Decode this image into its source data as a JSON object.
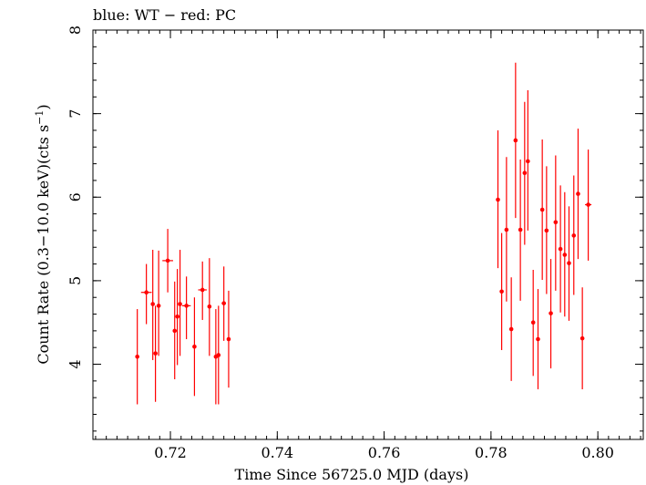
{
  "chart_data": {
    "type": "scatter",
    "title": "blue: WT − red: PC",
    "xlabel": "Time Since 56725.0 MJD (days)",
    "ylabel_main": "Count Rate (0.3−10.0 keV)(cts s",
    "ylabel_sup": "−1",
    "ylabel_close": ")",
    "xlim": [
      0.7055,
      0.8085
    ],
    "ylim": [
      3.1,
      8.0
    ],
    "xticks": [
      {
        "value": 0.72,
        "label": "0.72"
      },
      {
        "value": 0.74,
        "label": "0.74"
      },
      {
        "value": 0.76,
        "label": "0.76"
      },
      {
        "value": 0.78,
        "label": "0.78"
      },
      {
        "value": 0.8,
        "label": "0.80"
      }
    ],
    "yticks": [
      {
        "value": 4,
        "label": "4"
      },
      {
        "value": 5,
        "label": "5"
      },
      {
        "value": 6,
        "label": "6"
      },
      {
        "value": 7,
        "label": "7"
      },
      {
        "value": 8,
        "label": "8"
      }
    ],
    "xminor_step": 0.002,
    "yminor_step": 0.2,
    "grid": false,
    "series": [
      {
        "color": "#ff0000",
        "points": [
          {
            "x": 0.7138,
            "xerr": 0.0003,
            "y": 4.09,
            "ylo": 3.52,
            "yhi": 4.66
          },
          {
            "x": 0.7155,
            "xerr": 0.001,
            "y": 4.86,
            "ylo": 4.48,
            "yhi": 5.2
          },
          {
            "x": 0.7167,
            "xerr": 0.0003,
            "y": 4.72,
            "ylo": 4.05,
            "yhi": 5.37
          },
          {
            "x": 0.7172,
            "xerr": 0.0003,
            "y": 4.13,
            "ylo": 3.55,
            "yhi": 4.7
          },
          {
            "x": 0.7178,
            "xerr": 0.0003,
            "y": 4.7,
            "ylo": 4.1,
            "yhi": 5.36
          },
          {
            "x": 0.7195,
            "xerr": 0.001,
            "y": 5.24,
            "ylo": 4.86,
            "yhi": 5.62
          },
          {
            "x": 0.7208,
            "xerr": 0.0003,
            "y": 4.4,
            "ylo": 3.82,
            "yhi": 4.99
          },
          {
            "x": 0.7213,
            "xerr": 0.0003,
            "y": 4.57,
            "ylo": 3.99,
            "yhi": 5.14
          },
          {
            "x": 0.7218,
            "xerr": 0.0003,
            "y": 4.72,
            "ylo": 4.1,
            "yhi": 5.37
          },
          {
            "x": 0.723,
            "xerr": 0.0008,
            "y": 4.7,
            "ylo": 4.3,
            "yhi": 5.05
          },
          {
            "x": 0.7245,
            "xerr": 0.0003,
            "y": 4.21,
            "ylo": 3.62,
            "yhi": 4.8
          },
          {
            "x": 0.726,
            "xerr": 0.0008,
            "y": 4.89,
            "ylo": 4.53,
            "yhi": 5.23
          },
          {
            "x": 0.7273,
            "xerr": 0.0003,
            "y": 4.69,
            "ylo": 4.1,
            "yhi": 5.27
          },
          {
            "x": 0.7285,
            "xerr": 0.0003,
            "y": 4.09,
            "ylo": 3.52,
            "yhi": 4.66
          },
          {
            "x": 0.729,
            "xerr": 0.0003,
            "y": 4.11,
            "ylo": 3.52,
            "yhi": 4.7
          },
          {
            "x": 0.73,
            "xerr": 0.0004,
            "y": 4.73,
            "ylo": 4.28,
            "yhi": 5.17
          },
          {
            "x": 0.7309,
            "xerr": 0.0002,
            "y": 4.3,
            "ylo": 3.72,
            "yhi": 4.88
          },
          {
            "x": 0.7813,
            "xerr": 0.0002,
            "y": 5.97,
            "ylo": 5.15,
            "yhi": 6.8
          },
          {
            "x": 0.782,
            "xerr": 0.0002,
            "y": 4.87,
            "ylo": 4.17,
            "yhi": 5.57
          },
          {
            "x": 0.7829,
            "xerr": 0.0002,
            "y": 5.61,
            "ylo": 4.75,
            "yhi": 6.48
          },
          {
            "x": 0.7838,
            "xerr": 0.0002,
            "y": 4.42,
            "ylo": 3.8,
            "yhi": 5.04
          },
          {
            "x": 0.7846,
            "xerr": 0.0002,
            "y": 6.68,
            "ylo": 5.75,
            "yhi": 7.61
          },
          {
            "x": 0.7855,
            "xerr": 0.0002,
            "y": 5.61,
            "ylo": 4.76,
            "yhi": 6.45
          },
          {
            "x": 0.7863,
            "xerr": 0.0002,
            "y": 6.29,
            "ylo": 5.43,
            "yhi": 7.14
          },
          {
            "x": 0.7869,
            "xerr": 0.0002,
            "y": 6.43,
            "ylo": 5.6,
            "yhi": 7.28
          },
          {
            "x": 0.7879,
            "xerr": 0.0002,
            "y": 4.5,
            "ylo": 3.86,
            "yhi": 5.13
          },
          {
            "x": 0.7888,
            "xerr": 0.0002,
            "y": 4.3,
            "ylo": 3.7,
            "yhi": 4.9
          },
          {
            "x": 0.7896,
            "xerr": 0.0002,
            "y": 5.85,
            "ylo": 5.01,
            "yhi": 6.69
          },
          {
            "x": 0.7904,
            "xerr": 0.0002,
            "y": 5.6,
            "ylo": 4.84,
            "yhi": 6.37
          },
          {
            "x": 0.7912,
            "xerr": 0.0002,
            "y": 4.61,
            "ylo": 3.95,
            "yhi": 5.26
          },
          {
            "x": 0.7921,
            "xerr": 0.0002,
            "y": 5.7,
            "ylo": 4.88,
            "yhi": 6.5
          },
          {
            "x": 0.793,
            "xerr": 0.0002,
            "y": 5.38,
            "ylo": 4.62,
            "yhi": 6.14
          },
          {
            "x": 0.7938,
            "xerr": 0.0002,
            "y": 5.31,
            "ylo": 4.57,
            "yhi": 6.06
          },
          {
            "x": 0.7946,
            "xerr": 0.0002,
            "y": 5.21,
            "ylo": 4.52,
            "yhi": 5.89
          },
          {
            "x": 0.7955,
            "xerr": 0.0002,
            "y": 5.54,
            "ylo": 4.83,
            "yhi": 6.26
          },
          {
            "x": 0.7963,
            "xerr": 0.0002,
            "y": 6.04,
            "ylo": 5.26,
            "yhi": 6.82
          },
          {
            "x": 0.7971,
            "xerr": 0.0002,
            "y": 4.31,
            "ylo": 3.7,
            "yhi": 4.92
          },
          {
            "x": 0.7982,
            "xerr": 0.0006,
            "y": 5.91,
            "ylo": 5.24,
            "yhi": 6.57
          }
        ]
      }
    ]
  }
}
